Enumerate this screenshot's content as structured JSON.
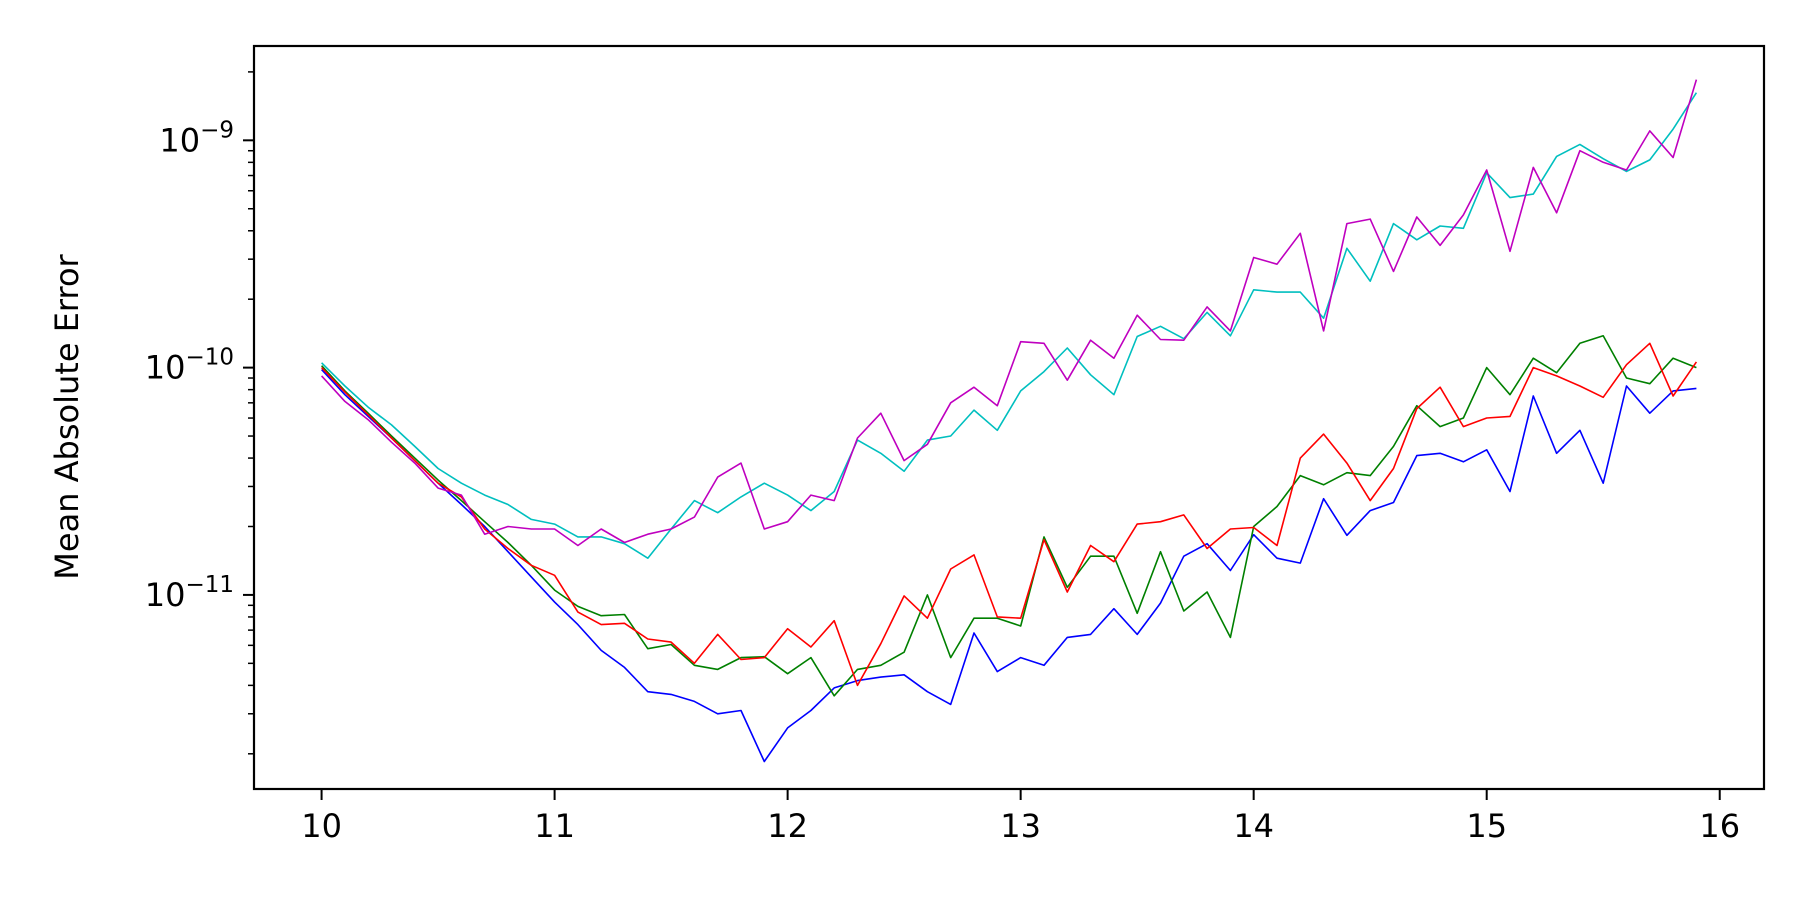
{
  "chart_data": {
    "type": "line",
    "xlabel": "",
    "ylabel": "Mean Absolute Error",
    "xlim": [
      9.71,
      16.19
    ],
    "ylim": [
      1.4e-12,
      2.6e-09
    ],
    "y_scale": "log",
    "grid": false,
    "x_ticks": [
      10,
      11,
      12,
      13,
      14,
      15,
      16
    ],
    "x_tick_labels": [
      "10",
      "11",
      "12",
      "13",
      "14",
      "15",
      "16"
    ],
    "y_ticks": [
      {
        "value": 1e-11,
        "base": "10",
        "exp": "−11"
      },
      {
        "value": 1e-10,
        "base": "10",
        "exp": "−10"
      },
      {
        "value": 1e-09,
        "base": "10",
        "exp": "−9"
      }
    ],
    "x": [
      10.0,
      10.1,
      10.2,
      10.3,
      10.4,
      10.5,
      10.6,
      10.7,
      10.8,
      10.9,
      11.0,
      11.1,
      11.2,
      11.3,
      11.4,
      11.5,
      11.6,
      11.7,
      11.8,
      11.9,
      12.0,
      12.1,
      12.2,
      12.3,
      12.4,
      12.5,
      12.6,
      12.7,
      12.8,
      12.9,
      13.0,
      13.1,
      13.2,
      13.3,
      13.4,
      13.5,
      13.6,
      13.7,
      13.8,
      13.9,
      14.0,
      14.1,
      14.2,
      14.3,
      14.4,
      14.5,
      14.6,
      14.7,
      14.8,
      14.9,
      15.0,
      15.1,
      15.2,
      15.3,
      15.4,
      15.5,
      15.6,
      15.7,
      15.8,
      15.9
    ],
    "series": [
      {
        "color": "#0000ff",
        "values": [
          9.8e-11,
          7.6e-11,
          6.1e-11,
          4.9e-11,
          3.9e-11,
          3.1e-11,
          2.5e-11,
          2e-11,
          1.55e-11,
          1.2e-11,
          9.3e-12,
          7.4e-12,
          5.7e-12,
          4.8e-12,
          3.75e-12,
          3.65e-12,
          3.4e-12,
          3e-12,
          3.1e-12,
          1.85e-12,
          2.6e-12,
          3.1e-12,
          3.9e-12,
          4.2e-12,
          4.35e-12,
          4.45e-12,
          3.75e-12,
          3.3e-12,
          6.8e-12,
          4.6e-12,
          5.3e-12,
          4.9e-12,
          6.5e-12,
          6.7e-12,
          8.7e-12,
          6.7e-12,
          9.2e-12,
          1.48e-11,
          1.68e-11,
          1.28e-11,
          1.84e-11,
          1.45e-11,
          1.38e-11,
          2.65e-11,
          1.83e-11,
          2.35e-11,
          2.55e-11,
          4.1e-11,
          4.2e-11,
          3.85e-11,
          4.35e-11,
          2.85e-11,
          7.5e-11,
          4.2e-11,
          5.3e-11,
          3.1e-11,
          8.3e-11,
          6.3e-11,
          7.9e-11,
          8.1e-11
        ]
      },
      {
        "color": "#008000",
        "values": [
          1.02e-10,
          7.9e-11,
          6.3e-11,
          5e-11,
          4e-11,
          3.2e-11,
          2.6e-11,
          2.1e-11,
          1.7e-11,
          1.35e-11,
          1.05e-11,
          8.9e-12,
          8.1e-12,
          8.2e-12,
          5.8e-12,
          6.05e-12,
          4.9e-12,
          4.7e-12,
          5.3e-12,
          5.35e-12,
          4.5e-12,
          5.3e-12,
          3.6e-12,
          4.7e-12,
          4.9e-12,
          5.6e-12,
          1e-11,
          5.3e-12,
          7.9e-12,
          7.9e-12,
          7.3e-12,
          1.8e-11,
          1.08e-11,
          1.48e-11,
          1.48e-11,
          8.3e-12,
          1.55e-11,
          8.5e-12,
          1.03e-11,
          6.5e-12,
          2e-11,
          2.45e-11,
          3.35e-11,
          3.05e-11,
          3.45e-11,
          3.35e-11,
          4.5e-11,
          6.8e-11,
          5.5e-11,
          6e-11,
          1e-10,
          7.6e-11,
          1.1e-10,
          9.5e-11,
          1.28e-10,
          1.38e-10,
          9e-11,
          8.5e-11,
          1.1e-10,
          1e-10
        ]
      },
      {
        "color": "#ff0000",
        "values": [
          1e-10,
          7.8e-11,
          6.2e-11,
          4.9e-11,
          3.9e-11,
          3.1e-11,
          2.7e-11,
          1.95e-11,
          1.6e-11,
          1.35e-11,
          1.22e-11,
          8.4e-12,
          7.4e-12,
          7.5e-12,
          6.4e-12,
          6.2e-12,
          5e-12,
          6.7e-12,
          5.2e-12,
          5.3e-12,
          7.1e-12,
          5.9e-12,
          7.7e-12,
          4e-12,
          6.1e-12,
          9.9e-12,
          7.9e-12,
          1.3e-11,
          1.5e-11,
          8e-12,
          7.9e-12,
          1.75e-11,
          1.03e-11,
          1.65e-11,
          1.4e-11,
          2.05e-11,
          2.1e-11,
          2.25e-11,
          1.6e-11,
          1.95e-11,
          1.98e-11,
          1.65e-11,
          4e-11,
          5.1e-11,
          3.8e-11,
          2.6e-11,
          3.6e-11,
          6.6e-11,
          8.2e-11,
          5.5e-11,
          6e-11,
          6.1e-11,
          1e-10,
          9.2e-11,
          8.3e-11,
          7.4e-11,
          1.03e-10,
          1.28e-10,
          7.5e-11,
          1.06e-10
        ]
      },
      {
        "color": "#00bfbf",
        "values": [
          1.05e-10,
          8.3e-11,
          6.7e-11,
          5.6e-11,
          4.5e-11,
          3.6e-11,
          3.1e-11,
          2.75e-11,
          2.5e-11,
          2.15e-11,
          2.05e-11,
          1.8e-11,
          1.8e-11,
          1.68e-11,
          1.45e-11,
          1.95e-11,
          2.6e-11,
          2.3e-11,
          2.7e-11,
          3.1e-11,
          2.75e-11,
          2.35e-11,
          2.85e-11,
          4.8e-11,
          4.2e-11,
          3.5e-11,
          4.8e-11,
          5e-11,
          6.5e-11,
          5.3e-11,
          7.9e-11,
          9.6e-11,
          1.22e-10,
          9.3e-11,
          7.6e-11,
          1.37e-10,
          1.52e-10,
          1.34e-10,
          1.75e-10,
          1.38e-10,
          2.2e-10,
          2.15e-10,
          2.15e-10,
          1.65e-10,
          3.35e-10,
          2.4e-10,
          4.3e-10,
          3.65e-10,
          4.2e-10,
          4.1e-10,
          7.2e-10,
          5.6e-10,
          5.8e-10,
          8.5e-10,
          9.6e-10,
          8.3e-10,
          7.3e-10,
          8.2e-10,
          1.12e-09,
          1.62e-09
        ]
      },
      {
        "color": "#bf00bf",
        "values": [
          9.2e-11,
          7.1e-11,
          5.9e-11,
          4.7e-11,
          3.8e-11,
          2.95e-11,
          2.75e-11,
          1.85e-11,
          2e-11,
          1.95e-11,
          1.95e-11,
          1.65e-11,
          1.95e-11,
          1.7e-11,
          1.85e-11,
          1.95e-11,
          2.2e-11,
          3.3e-11,
          3.8e-11,
          1.95e-11,
          2.1e-11,
          2.75e-11,
          2.6e-11,
          4.9e-11,
          6.3e-11,
          3.9e-11,
          4.6e-11,
          7e-11,
          8.2e-11,
          6.8e-11,
          1.3e-10,
          1.28e-10,
          8.8e-11,
          1.32e-10,
          1.1e-10,
          1.7e-10,
          1.33e-10,
          1.32e-10,
          1.85e-10,
          1.45e-10,
          3.05e-10,
          2.85e-10,
          3.9e-10,
          1.45e-10,
          4.3e-10,
          4.5e-10,
          2.65e-10,
          4.6e-10,
          3.45e-10,
          4.7e-10,
          7.4e-10,
          3.25e-10,
          7.6e-10,
          4.8e-10,
          9e-10,
          8e-10,
          7.4e-10,
          1.1e-09,
          8.4e-10,
          1.85e-09
        ]
      }
    ]
  }
}
